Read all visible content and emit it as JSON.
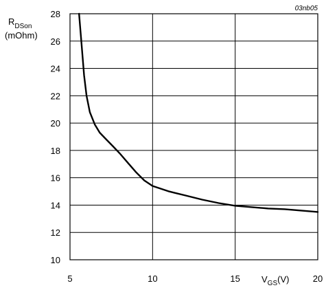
{
  "chart_data": {
    "type": "line",
    "title": "",
    "code": "03nb05",
    "ylabel": {
      "main": "R",
      "sub": "DSon",
      "unit": "(mOhm)"
    },
    "xlabel": {
      "main": "V",
      "sub": "GS",
      "unit": "(V)"
    },
    "xlim": [
      5,
      20
    ],
    "ylim": [
      10,
      28
    ],
    "x_ticks": [
      5,
      10,
      15,
      20
    ],
    "y_ticks": [
      10,
      12,
      14,
      16,
      18,
      20,
      22,
      24,
      26,
      28
    ],
    "grid": true,
    "series": [
      {
        "points": [
          [
            5.55,
            28.0
          ],
          [
            5.7,
            25.8
          ],
          [
            5.85,
            23.5
          ],
          [
            6.0,
            22.0
          ],
          [
            6.2,
            20.8
          ],
          [
            6.5,
            19.9
          ],
          [
            6.8,
            19.3
          ],
          [
            7.2,
            18.8
          ],
          [
            7.6,
            18.3
          ],
          [
            8.0,
            17.8
          ],
          [
            8.5,
            17.1
          ],
          [
            9.0,
            16.4
          ],
          [
            9.5,
            15.8
          ],
          [
            10.0,
            15.4
          ],
          [
            10.5,
            15.2
          ],
          [
            11.0,
            15.0
          ],
          [
            12.0,
            14.7
          ],
          [
            13.0,
            14.4
          ],
          [
            14.0,
            14.15
          ],
          [
            15.0,
            13.95
          ],
          [
            16.0,
            13.85
          ],
          [
            17.0,
            13.75
          ],
          [
            18.0,
            13.7
          ],
          [
            19.0,
            13.6
          ],
          [
            20.0,
            13.5
          ]
        ]
      }
    ]
  }
}
